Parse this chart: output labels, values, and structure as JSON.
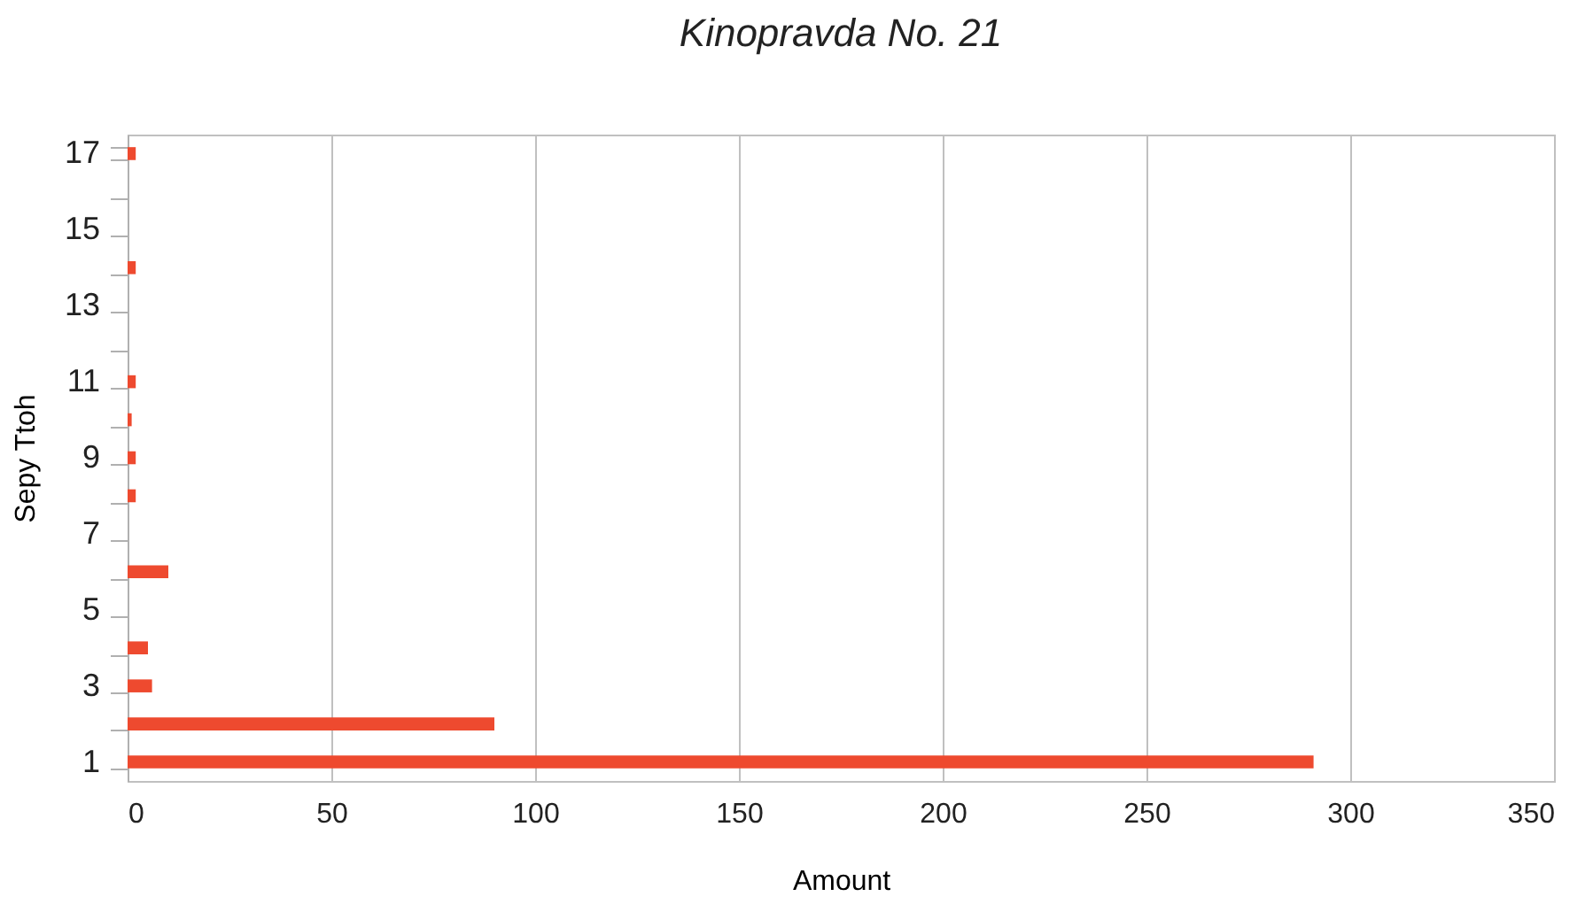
{
  "chart_data": {
    "type": "bar",
    "title": "Kinopravda No. 21",
    "xlabel": "Amount",
    "ylabel": "Sepy Ttoh",
    "orientation": "horizontal",
    "categories": [
      "17",
      null,
      "15",
      null,
      "13",
      null,
      "11",
      null,
      "9",
      null,
      "7",
      null,
      "5",
      null,
      "3",
      null,
      "1"
    ],
    "values": [
      2,
      0,
      0,
      2,
      0,
      0,
      2,
      1,
      2,
      2,
      0,
      10,
      0,
      5,
      6,
      90,
      291
    ],
    "color": "#ee4a2f",
    "xlim": [
      0,
      350
    ],
    "xticks": [
      0,
      50,
      100,
      150,
      200,
      250,
      300,
      350
    ],
    "grid": "x"
  }
}
